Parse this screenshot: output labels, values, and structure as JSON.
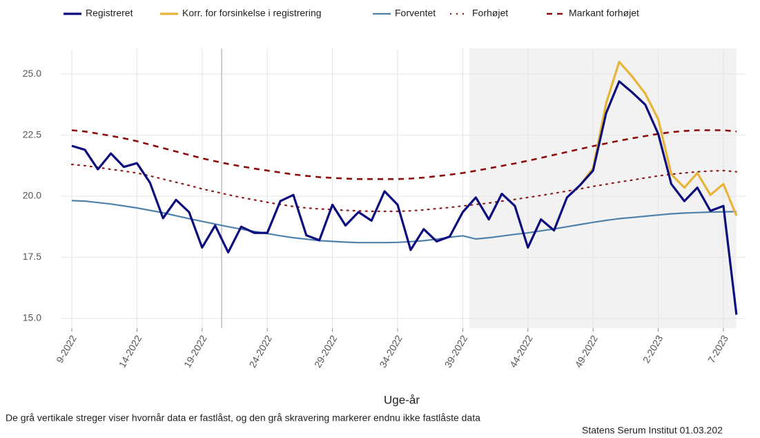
{
  "chart_data": {
    "type": "line",
    "x_label": "Uge-år",
    "caption": "De grå vertikale streger viser hvornår data er fastlåst, og den grå skravering markerer endnu ikke fastlåste data",
    "source": "Statens Serum Institut  01.03.202",
    "categories": [
      "9-2022",
      null,
      null,
      null,
      null,
      "14-2022",
      null,
      null,
      null,
      null,
      "19-2022",
      null,
      null,
      null,
      null,
      "24-2022",
      null,
      null,
      null,
      null,
      "29-2022",
      null,
      null,
      null,
      null,
      "34-2022",
      null,
      null,
      null,
      null,
      "39-2022",
      null,
      null,
      null,
      null,
      "44-2022",
      null,
      null,
      null,
      null,
      "49-2022",
      null,
      null,
      null,
      null,
      "2-2023",
      null,
      null,
      null,
      null,
      "7-2023",
      null
    ],
    "series": [
      {
        "name": "Registreret",
        "color": "#0b0b7e",
        "style": "solid",
        "width": 3.2,
        "values": [
          22.06,
          21.9,
          21.1,
          21.75,
          21.2,
          21.35,
          20.55,
          19.1,
          19.85,
          19.35,
          17.9,
          18.8,
          17.7,
          18.75,
          18.5,
          18.5,
          19.8,
          20.05,
          18.4,
          18.2,
          19.65,
          18.8,
          19.35,
          19.0,
          20.2,
          19.65,
          17.8,
          18.65,
          18.15,
          18.35,
          19.35,
          19.95,
          19.05,
          20.1,
          19.6,
          17.9,
          19.05,
          18.6,
          19.95,
          20.45,
          21.05,
          23.4,
          24.7,
          24.25,
          23.75,
          22.55,
          20.5,
          19.8,
          20.35,
          19.4,
          19.6,
          15.15
        ]
      },
      {
        "name": "Korr. for forsinkelse i registrering",
        "color": "#e8b339",
        "style": "solid",
        "width": 3.2,
        "values": [
          null,
          null,
          null,
          null,
          null,
          null,
          null,
          null,
          null,
          null,
          null,
          null,
          null,
          null,
          null,
          null,
          null,
          null,
          null,
          null,
          null,
          null,
          null,
          null,
          null,
          null,
          null,
          null,
          null,
          null,
          null,
          null,
          null,
          null,
          null,
          null,
          null,
          null,
          null,
          20.45,
          21.15,
          23.8,
          25.5,
          24.9,
          24.2,
          23.15,
          20.9,
          20.35,
          20.95,
          20.05,
          20.5,
          19.2
        ]
      },
      {
        "name": "Forventet",
        "color": "#4f82ab",
        "style": "solid",
        "width": 2.2,
        "values": [
          19.82,
          19.8,
          19.74,
          19.68,
          19.6,
          19.52,
          19.42,
          19.32,
          19.2,
          19.08,
          18.97,
          18.86,
          18.75,
          18.65,
          18.56,
          18.47,
          18.38,
          18.3,
          18.24,
          18.18,
          18.15,
          18.12,
          18.1,
          18.1,
          18.1,
          18.11,
          18.14,
          18.18,
          18.24,
          18.32,
          18.38,
          18.25,
          18.3,
          18.37,
          18.44,
          18.5,
          18.58,
          18.66,
          18.75,
          18.84,
          18.93,
          19.01,
          19.08,
          19.13,
          19.18,
          19.23,
          19.28,
          19.31,
          19.33,
          19.35,
          19.36,
          19.37
        ]
      },
      {
        "name": "Forhøjet",
        "color": "#8b1c1c",
        "style": "dotted",
        "width": 2.2,
        "values": [
          21.3,
          21.25,
          21.18,
          21.1,
          21.03,
          20.95,
          20.83,
          20.7,
          20.57,
          20.44,
          20.3,
          20.18,
          20.06,
          19.95,
          19.85,
          19.75,
          19.66,
          19.58,
          19.52,
          19.48,
          19.45,
          19.42,
          19.4,
          19.38,
          19.38,
          19.38,
          19.4,
          19.44,
          19.49,
          19.54,
          19.6,
          19.66,
          19.72,
          19.8,
          19.87,
          19.95,
          20.03,
          20.12,
          20.21,
          20.3,
          20.4,
          20.49,
          20.58,
          20.66,
          20.75,
          20.83,
          20.9,
          20.95,
          21.0,
          21.03,
          21.05,
          21.0
        ]
      },
      {
        "name": "Markant forhøjet",
        "color": "#8b0a0a",
        "style": "dashed",
        "width": 2.6,
        "values": [
          22.7,
          22.65,
          22.56,
          22.47,
          22.37,
          22.25,
          22.11,
          21.97,
          21.83,
          21.69,
          21.55,
          21.43,
          21.32,
          21.22,
          21.13,
          21.05,
          20.97,
          20.89,
          20.83,
          20.78,
          20.75,
          20.72,
          20.7,
          20.7,
          20.7,
          20.7,
          20.72,
          20.76,
          20.82,
          20.88,
          20.95,
          21.04,
          21.14,
          21.24,
          21.34,
          21.45,
          21.57,
          21.69,
          21.81,
          21.93,
          22.05,
          22.16,
          22.27,
          22.37,
          22.46,
          22.55,
          22.62,
          22.67,
          22.7,
          22.7,
          22.7,
          22.65
        ]
      }
    ],
    "ylim": [
      14.6,
      26.05
    ],
    "yticks": [
      {
        "value": 15,
        "label": "15.0"
      },
      17.5,
      {
        "value": 20,
        "label": "20.0"
      },
      22.5,
      {
        "value": 25,
        "label": "25.0"
      }
    ],
    "vlines": [
      11.5
    ],
    "shade": [
      30.5,
      51
    ],
    "grid": true
  }
}
